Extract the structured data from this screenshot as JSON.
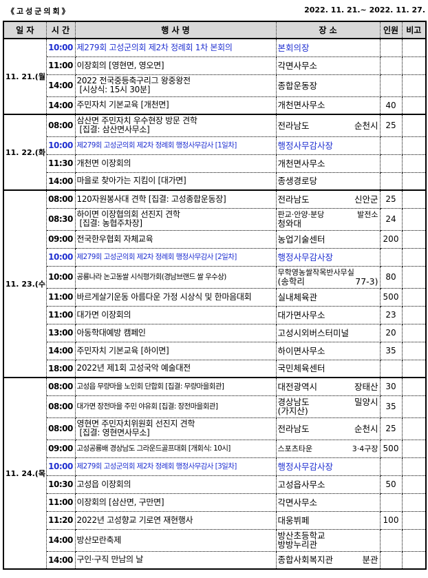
{
  "header": {
    "org": "《고성군의회》",
    "period": "2022. 11. 21.~ 2022. 11. 27."
  },
  "columns": {
    "date": "일 자",
    "time": "시 간",
    "title": "행 사 명",
    "place": "장 소",
    "count": "인원",
    "note": "비고"
  },
  "colors": {
    "highlight": "#1f2fd0",
    "header_bg": "#d9d9d9"
  },
  "days": [
    {
      "date": "11. 21.(월)",
      "events": [
        {
          "time": "10:00",
          "title": [
            "제279회 고성군의회 제2차 정례회 1차 본회의"
          ],
          "place": [
            "본회의장"
          ],
          "count": "",
          "highlight": true
        },
        {
          "time": "11:00",
          "title": [
            "이장회의 [영현면, 영오면]"
          ],
          "place": [
            "각면사무소"
          ],
          "count": ""
        },
        {
          "time": "14:00",
          "title": [
            "2022 전국중등축구리그 왕중왕전",
            "[시상식: 15시 30분]"
          ],
          "place": [
            "종합운동장"
          ],
          "count": ""
        },
        {
          "time": "14:00",
          "title": [
            "주민자치 기본교육 [개천면]"
          ],
          "place": [
            "개천면사무소"
          ],
          "count": "40"
        }
      ]
    },
    {
      "date": "11. 22.(화)",
      "events": [
        {
          "time": "08:00",
          "title": [
            "삼산면 주민자치 우수현장 방문 견학",
            "[집결: 삼산면사무소]"
          ],
          "place": [
            "전라남도 순천시"
          ],
          "count": "25"
        },
        {
          "time": "10:00",
          "title": [
            "제279회 고성군의회 제2차 정례회 행정사무감사 [1일차]"
          ],
          "place": [
            "행정사무감사장"
          ],
          "count": "",
          "highlight": true,
          "small": true
        },
        {
          "time": "11:30",
          "title": [
            "개천면 이장회의"
          ],
          "place": [
            "개천면사무소"
          ],
          "count": ""
        },
        {
          "time": "14:00",
          "title": [
            "마을로 찾아가는 지킴이 [대가면]"
          ],
          "place": [
            "종생경로당"
          ],
          "count": ""
        }
      ]
    },
    {
      "date": "11. 23.(수)",
      "events": [
        {
          "time": "08:00",
          "title": [
            "120자원봉사대 견학 [집결: 고성종합운동장]"
          ],
          "place": [
            "전라남도 신안군"
          ],
          "count": "25"
        },
        {
          "time": "08:30",
          "title": [
            "하이면 이장협의회 선진지 견학",
            "[집결: 농협주차장]"
          ],
          "place": [
            "판교·안양·분당 발전소",
            "청와대"
          ],
          "count": "24"
        },
        {
          "time": "09:00",
          "title": [
            "전국한우협회 자체교육"
          ],
          "place": [
            "농업기술센터"
          ],
          "count": "200"
        },
        {
          "time": "10:00",
          "title": [
            "제279회 고성군의회 제2차 정례회 행정사무감사 [2일차]"
          ],
          "place": [
            "행정사무감사장"
          ],
          "count": "",
          "highlight": true,
          "small": true
        },
        {
          "time": "10:00",
          "title": [
            "공룡나라 논고동쌀 시식평가회(경남브랜드 쌀 우수상)"
          ],
          "place": [
            "무학영농쌀작목반사무실",
            "(송학리 77-3)"
          ],
          "count": "80",
          "small": true
        },
        {
          "time": "11:00",
          "title": [
            "바르게살기운동 아름다운 가정 시상식 및 한마음대회"
          ],
          "place": [
            "실내체육관"
          ],
          "count": "500"
        },
        {
          "time": "11:00",
          "title": [
            "대가면 이장회의"
          ],
          "place": [
            "대가면사무소"
          ],
          "count": "23"
        },
        {
          "time": "13:00",
          "title": [
            "아동학대예방 캠페인"
          ],
          "place": [
            "고성시외버스터미널"
          ],
          "count": "20"
        },
        {
          "time": "14:00",
          "title": [
            "주민자치 기본교육 [하이면]"
          ],
          "place": [
            "하이면사무소"
          ],
          "count": "35"
        },
        {
          "time": "18:00",
          "title": [
            "2022년 제1회 고성국악 예술대전"
          ],
          "place": [
            "국민체육센터"
          ],
          "count": ""
        }
      ]
    },
    {
      "date": "11. 24.(목)",
      "events": [
        {
          "time": "08:00",
          "title": [
            "고성읍 무량마을 노인회 단합회 [집결: 무량마을회관]"
          ],
          "place": [
            "대전광역시 장태산"
          ],
          "count": "30",
          "small": true
        },
        {
          "time": "08:00",
          "title": [
            "대가면 장전마을 주민 야유회 [집결: 장전마을회관]"
          ],
          "place": [
            "경상남도 밀양시",
            "(가지산)"
          ],
          "count": "35",
          "small": true
        },
        {
          "time": "08:00",
          "title": [
            "영현면 주민자치위원회 선진지 견학",
            "[집결: 영현면사무소]"
          ],
          "place": [
            "전라남도 순천시"
          ],
          "count": "25"
        },
        {
          "time": "09:00",
          "title": [
            "고성공룡배 경상남도 그라운드골프대회 [개회식: 10시]"
          ],
          "place": [
            "스포츠타운 3·4구장"
          ],
          "count": "500",
          "small": true
        },
        {
          "time": "10:00",
          "title": [
            "제279회 고성군의회 제2차 정례회 행정사무감사 [3일차]"
          ],
          "place": [
            "행정사무감사장"
          ],
          "count": "",
          "highlight": true,
          "small": true
        },
        {
          "time": "10:30",
          "title": [
            "고성읍 이장회의"
          ],
          "place": [
            "고성읍사무소"
          ],
          "count": "50"
        },
        {
          "time": "11:00",
          "title": [
            "이장회의 [삼산면, 구만면]"
          ],
          "place": [
            "각면사무소"
          ],
          "count": ""
        },
        {
          "time": "11:20",
          "title": [
            "2022년 고성향교 기로연 재현행사"
          ],
          "place": [
            "대웅뷔페"
          ],
          "count": "100"
        },
        {
          "time": "14:00",
          "title": [
            "방산모란축제"
          ],
          "place": [
            "방산초등학교",
            "방방누리관"
          ],
          "count": ""
        },
        {
          "time": "14:00",
          "title": [
            "구인·구직 만남의 날"
          ],
          "place": [
            "종합사회복지관 분관"
          ],
          "count": ""
        }
      ]
    }
  ]
}
